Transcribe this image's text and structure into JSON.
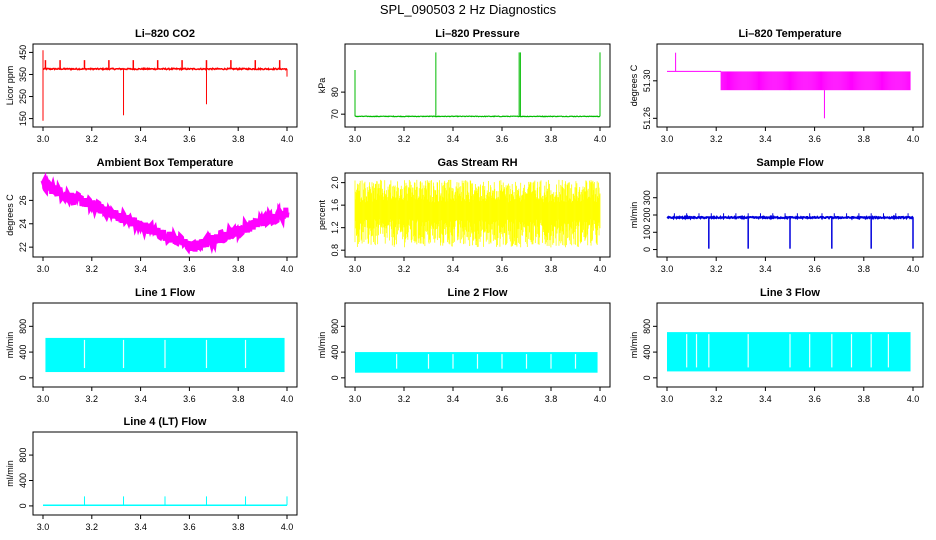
{
  "figure_title": "SPL_090503  2 Hz Diagnostics",
  "chart_data": [
    {
      "type": "line",
      "title": "Li–820 CO2",
      "ylabel": "Licor ppm",
      "color": "#ff0000",
      "xlim": [
        3.0,
        4.0
      ],
      "ylim": [
        130,
        470
      ],
      "xticks": [
        "3.0",
        "3.2",
        "3.4",
        "3.6",
        "3.8",
        "4.0"
      ],
      "xtick_values": [
        3.0,
        3.2,
        3.4,
        3.6,
        3.8,
        4.0
      ],
      "yticks": [
        "150",
        "250",
        "350",
        "450"
      ],
      "ytick_values": [
        150,
        250,
        350,
        450
      ],
      "series": [
        {
          "name": "CO2",
          "baseline": 375,
          "noise": 6,
          "min": 140,
          "max": 460
        }
      ]
    },
    {
      "type": "line",
      "title": "Li–820 Pressure",
      "ylabel": "kPa",
      "color": "#00bb00",
      "xlim": [
        3.0,
        4.0
      ],
      "ylim": [
        66,
        100
      ],
      "xticks": [
        "3.0",
        "3.2",
        "3.4",
        "3.6",
        "3.8",
        "4.0"
      ],
      "xtick_values": [
        3.0,
        3.2,
        3.4,
        3.6,
        3.8,
        4.0
      ],
      "yticks": [
        "70",
        "80"
      ],
      "ytick_values": [
        70,
        80
      ],
      "series": [
        {
          "name": "Pressure",
          "baseline": 69,
          "noise": 0.3,
          "min": 67,
          "max": 98
        }
      ]
    },
    {
      "type": "line",
      "title": "Li–820 Temperature",
      "ylabel": "degrees C",
      "color": "#ff00ff",
      "xlim": [
        3.0,
        4.0
      ],
      "ylim": [
        51.255,
        51.335
      ],
      "xticks": [
        "3.0",
        "3.2",
        "3.4",
        "3.6",
        "3.8",
        "4.0"
      ],
      "xtick_values": [
        3.0,
        3.2,
        3.4,
        3.6,
        3.8,
        4.0
      ],
      "yticks": [
        "51.26",
        "51.30"
      ],
      "ytick_values": [
        51.26,
        51.3
      ],
      "series": [
        {
          "name": "Temperature",
          "low": 51.29,
          "high": 51.31,
          "min": 51.26,
          "max": 51.33
        }
      ]
    },
    {
      "type": "line",
      "title": "Ambient Box Temperature",
      "ylabel": "degrees C",
      "color": "#ff00ff",
      "xlim": [
        3.0,
        4.0
      ],
      "ylim": [
        21.5,
        28.0
      ],
      "xticks": [
        "3.0",
        "3.2",
        "3.4",
        "3.6",
        "3.8",
        "4.0"
      ],
      "xtick_values": [
        3.0,
        3.2,
        3.4,
        3.6,
        3.8,
        4.0
      ],
      "yticks": [
        "22",
        "24",
        "26"
      ],
      "ytick_values": [
        22,
        24,
        26
      ],
      "series": [
        {
          "name": "Ambient",
          "start": 27.3,
          "min_at": 3.62,
          "min_value": 22.0,
          "end": 25.0
        }
      ]
    },
    {
      "type": "line",
      "title": "Gas Stream RH",
      "ylabel": "percent",
      "color": "#ffff00",
      "xlim": [
        3.0,
        4.0
      ],
      "ylim": [
        0.75,
        2.1
      ],
      "xticks": [
        "3.0",
        "3.2",
        "3.4",
        "3.6",
        "3.8",
        "4.0"
      ],
      "xtick_values": [
        3.0,
        3.2,
        3.4,
        3.6,
        3.8,
        4.0
      ],
      "yticks": [
        "0.8",
        "1.2",
        "1.6",
        "2.0"
      ],
      "ytick_values": [
        0.8,
        1.2,
        1.6,
        2.0
      ],
      "series": [
        {
          "name": "RH",
          "min": 0.85,
          "max": 2.05
        }
      ]
    },
    {
      "type": "line",
      "title": "Sample Flow",
      "ylabel": "ml/min",
      "color": "#0000dd",
      "xlim": [
        3.0,
        4.0
      ],
      "ylim": [
        -20,
        420
      ],
      "xticks": [
        "3.0",
        "3.2",
        "3.4",
        "3.6",
        "3.8",
        "4.0"
      ],
      "xtick_values": [
        3.0,
        3.2,
        3.4,
        3.6,
        3.8,
        4.0
      ],
      "yticks": [
        "0",
        "100",
        "200",
        "300"
      ],
      "ytick_values": [
        0,
        100,
        200,
        300
      ],
      "series": [
        {
          "name": "Sample Flow",
          "baseline": 185,
          "noise": 8,
          "dropouts": [
            3.17,
            3.33,
            3.5,
            3.67,
            3.83,
            4.0
          ],
          "dropout_value": 5
        }
      ]
    },
    {
      "type": "line",
      "title": "Line 1 Flow",
      "ylabel": "ml/min",
      "color": "#00ffff",
      "xlim": [
        3.0,
        4.0
      ],
      "ylim": [
        -80,
        1100
      ],
      "xticks": [
        "3.0",
        "3.2",
        "3.4",
        "3.6",
        "3.8",
        "4.0"
      ],
      "xtick_values": [
        3.0,
        3.2,
        3.4,
        3.6,
        3.8,
        4.0
      ],
      "yticks": [
        "0",
        "400",
        "800"
      ],
      "ytick_values": [
        0,
        400,
        800
      ],
      "series": [
        {
          "name": "Line 1",
          "low": 90,
          "high": 620
        }
      ]
    },
    {
      "type": "line",
      "title": "Line 2 Flow",
      "ylabel": "ml/min",
      "color": "#00ffff",
      "xlim": [
        3.0,
        4.0
      ],
      "ylim": [
        -80,
        1100
      ],
      "xticks": [
        "3.0",
        "3.2",
        "3.4",
        "3.6",
        "3.8",
        "4.0"
      ],
      "xtick_values": [
        3.0,
        3.2,
        3.4,
        3.6,
        3.8,
        4.0
      ],
      "yticks": [
        "0",
        "400",
        "800"
      ],
      "ytick_values": [
        0,
        400,
        800
      ],
      "series": [
        {
          "name": "Line 2",
          "low": 80,
          "high": 400
        }
      ]
    },
    {
      "type": "line",
      "title": "Line 3 Flow",
      "ylabel": "ml/min",
      "color": "#00ffff",
      "xlim": [
        3.0,
        4.0
      ],
      "ylim": [
        -80,
        1100
      ],
      "xticks": [
        "3.0",
        "3.2",
        "3.4",
        "3.6",
        "3.8",
        "4.0"
      ],
      "xtick_values": [
        3.0,
        3.2,
        3.4,
        3.6,
        3.8,
        4.0
      ],
      "yticks": [
        "0",
        "400",
        "800"
      ],
      "ytick_values": [
        0,
        400,
        800
      ],
      "series": [
        {
          "name": "Line 3",
          "low": 100,
          "high": 710
        }
      ]
    },
    {
      "type": "line",
      "title": "Line 4 (LT) Flow",
      "ylabel": "ml/min",
      "color": "#00ffff",
      "xlim": [
        3.0,
        4.0
      ],
      "ylim": [
        -80,
        1100
      ],
      "xticks": [
        "3.0",
        "3.2",
        "3.4",
        "3.6",
        "3.8",
        "4.0"
      ],
      "xtick_values": [
        3.0,
        3.2,
        3.4,
        3.6,
        3.8,
        4.0
      ],
      "yticks": [
        "0",
        "400",
        "800"
      ],
      "ytick_values": [
        0,
        400,
        800
      ],
      "series": [
        {
          "name": "Line 4",
          "baseline": 10,
          "spikes": [
            3.17,
            3.33,
            3.5,
            3.67,
            3.83,
            4.0
          ],
          "spike_value": 150
        }
      ]
    }
  ]
}
